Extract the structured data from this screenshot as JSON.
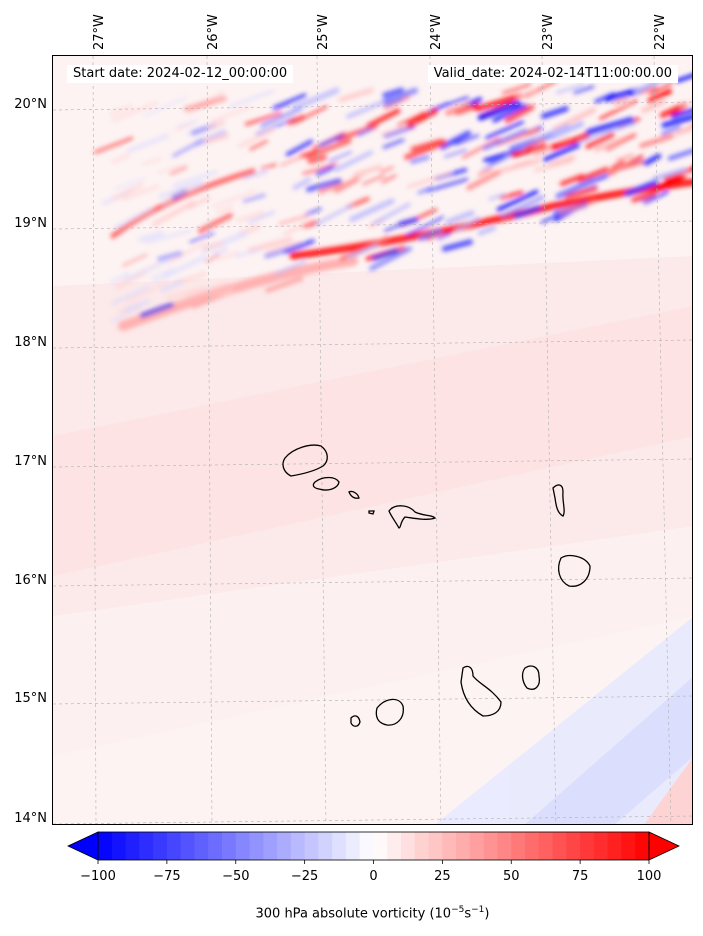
{
  "map": {
    "start_date": "Start date: 2024-02-12_00:00:00",
    "valid_date": "Valid_date: 2024-02-14T11:00:00.00",
    "lon_labels": [
      "27°W",
      "26°W",
      "25°W",
      "24°W",
      "23°W",
      "22°W"
    ],
    "lat_labels": [
      "20°N",
      "19°N",
      "18°N",
      "17°N",
      "16°N",
      "15°N",
      "14°N"
    ],
    "islands": [
      "Santo Antão",
      "São Vicente",
      "Santa Luzia",
      "São Nicolau",
      "Sal",
      "Boa Vista",
      "Maio",
      "Santiago",
      "Fogo",
      "Brava"
    ]
  },
  "colorbar": {
    "ticks": [
      "−100",
      "−75",
      "−50",
      "−25",
      "0",
      "25",
      "50",
      "75",
      "100"
    ],
    "min": -100,
    "max": 100,
    "label_main": "300 hPa absolute vorticity (10",
    "label_exp1": "−5",
    "label_mid": "s",
    "label_exp2": "−1",
    "label_end": ")"
  },
  "colors": {
    "neg": "#0000ff",
    "pos": "#ff0000",
    "mid": "#ffffff",
    "coast": "#000000",
    "grid": "#b0b0b0"
  }
}
